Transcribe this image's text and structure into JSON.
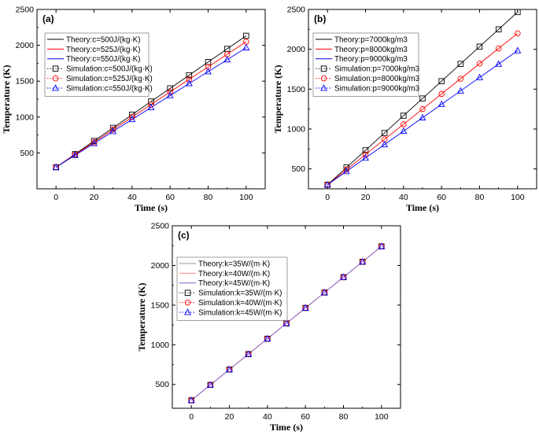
{
  "chart_data": [
    {
      "id": "a",
      "type": "line",
      "panel_label": "(a)",
      "xlabel": "Time (s)",
      "ylabel": "Temperature (K)",
      "xlim": [
        -10,
        110
      ],
      "ylim": [
        0,
        2500
      ],
      "xticks": [
        0,
        20,
        40,
        60,
        80,
        100
      ],
      "yticks": [
        500,
        1000,
        1500,
        2000,
        2500
      ],
      "legend_position": "upper-left",
      "x": [
        0,
        10,
        20,
        30,
        40,
        50,
        60,
        70,
        80,
        90,
        100
      ],
      "series": [
        {
          "name": "Theory:c=500J/(kg·K)",
          "kind": "line",
          "color": "#000000",
          "values": [
            300,
            483,
            667,
            850,
            1033,
            1217,
            1400,
            1583,
            1767,
            1950,
            2133
          ]
        },
        {
          "name": "Theory:c=525J/(kg·K)",
          "kind": "line",
          "color": "#ff0000",
          "values": [
            300,
            475,
            650,
            825,
            1000,
            1175,
            1350,
            1525,
            1700,
            1875,
            2050
          ]
        },
        {
          "name": "Theory:c=550J/(kg·K)",
          "kind": "line",
          "color": "#0000ff",
          "values": [
            300,
            467,
            633,
            800,
            967,
            1133,
            1300,
            1467,
            1633,
            1800,
            1967
          ]
        },
        {
          "name": "Simulation:c=500J/(kg·K)",
          "kind": "marker",
          "marker": "square",
          "color": "#000000",
          "values": [
            300,
            483,
            667,
            850,
            1033,
            1217,
            1400,
            1583,
            1767,
            1950,
            2133
          ]
        },
        {
          "name": "Simulation:c=525J/(kg·K)",
          "kind": "marker",
          "marker": "circle",
          "color": "#ff0000",
          "values": [
            300,
            475,
            650,
            825,
            1000,
            1175,
            1350,
            1525,
            1700,
            1875,
            2050
          ]
        },
        {
          "name": "Simulation:c=550J/(kg·K)",
          "kind": "marker",
          "marker": "triangle",
          "color": "#0000ff",
          "values": [
            300,
            467,
            633,
            800,
            967,
            1133,
            1300,
            1467,
            1633,
            1800,
            1967
          ]
        }
      ]
    },
    {
      "id": "b",
      "type": "line",
      "panel_label": "(b)",
      "xlabel": "Time (s)",
      "ylabel": "Temperature (K)",
      "xlim": [
        -10,
        110
      ],
      "ylim": [
        250,
        2500
      ],
      "xticks": [
        0,
        20,
        40,
        60,
        80,
        100
      ],
      "yticks": [
        500,
        1000,
        1500,
        2000,
        2500
      ],
      "legend_position": "upper-left",
      "x": [
        0,
        10,
        20,
        30,
        40,
        50,
        60,
        70,
        80,
        90,
        100
      ],
      "series": [
        {
          "name": "Theory:p=7000kg/m3",
          "kind": "line",
          "color": "#000000",
          "values": [
            300,
            517,
            733,
            950,
            1167,
            1383,
            1600,
            1817,
            2033,
            2250,
            2467
          ]
        },
        {
          "name": "Theory:p=8000kg/m3",
          "kind": "line",
          "color": "#ff0000",
          "values": [
            300,
            490,
            680,
            870,
            1060,
            1250,
            1440,
            1630,
            1820,
            2010,
            2200
          ]
        },
        {
          "name": "Theory:p=9000kg/m3",
          "kind": "line",
          "color": "#0000ff",
          "values": [
            300,
            468,
            637,
            805,
            973,
            1142,
            1310,
            1478,
            1646,
            1815,
            1983
          ]
        },
        {
          "name": "Simulation:p=7000kg/m3",
          "kind": "marker",
          "marker": "square",
          "color": "#000000",
          "values": [
            300,
            517,
            733,
            950,
            1167,
            1383,
            1600,
            1817,
            2033,
            2250,
            2467
          ]
        },
        {
          "name": "Simulation:p=8000kg/m3",
          "kind": "marker",
          "marker": "circle",
          "color": "#ff0000",
          "values": [
            300,
            490,
            680,
            870,
            1060,
            1250,
            1440,
            1630,
            1820,
            2010,
            2200
          ]
        },
        {
          "name": "Simulation:p=9000kg/m3",
          "kind": "marker",
          "marker": "triangle",
          "color": "#0000ff",
          "values": [
            300,
            468,
            637,
            805,
            973,
            1142,
            1310,
            1478,
            1646,
            1815,
            1983
          ]
        }
      ]
    },
    {
      "id": "c",
      "type": "line",
      "panel_label": "(c)",
      "xlabel": "Time (s)",
      "ylabel": "Temperature (K)",
      "xlim": [
        -10,
        110
      ],
      "ylim": [
        200,
        2500
      ],
      "xticks": [
        0,
        20,
        40,
        60,
        80,
        100
      ],
      "yticks": [
        500,
        1000,
        1500,
        2000,
        2500
      ],
      "legend_position": "upper-left",
      "x": [
        0,
        10,
        20,
        30,
        40,
        50,
        60,
        70,
        80,
        90,
        100
      ],
      "series": [
        {
          "name": "Theory:k=35W/(m·K)",
          "kind": "line",
          "color": "#9a9a9a",
          "values": [
            300,
            494,
            688,
            882,
            1076,
            1270,
            1464,
            1658,
            1852,
            2046,
            2240
          ]
        },
        {
          "name": "Theory:k=40W/(m·K)",
          "kind": "line",
          "color": "#ff8a8a",
          "values": [
            300,
            494,
            688,
            882,
            1076,
            1270,
            1464,
            1658,
            1852,
            2046,
            2240
          ]
        },
        {
          "name": "Theory:k=45W/(m·K)",
          "kind": "line",
          "color": "#8a5cc8",
          "values": [
            300,
            494,
            688,
            882,
            1076,
            1270,
            1464,
            1658,
            1852,
            2046,
            2240
          ]
        },
        {
          "name": "Simulation:k=35W/(m·K)",
          "kind": "marker",
          "marker": "square",
          "color": "#000000",
          "values": [
            300,
            494,
            688,
            882,
            1076,
            1270,
            1464,
            1658,
            1852,
            2046,
            2240
          ]
        },
        {
          "name": "Simulation:k=40W/(m·K)",
          "kind": "marker",
          "marker": "circle",
          "color": "#ff0000",
          "values": [
            300,
            494,
            688,
            882,
            1076,
            1270,
            1464,
            1658,
            1852,
            2046,
            2240
          ]
        },
        {
          "name": "Simulation:k=45W/(m·K)",
          "kind": "marker",
          "marker": "triangle",
          "color": "#0000ff",
          "values": [
            300,
            494,
            688,
            882,
            1076,
            1270,
            1464,
            1658,
            1852,
            2046,
            2240
          ]
        }
      ]
    }
  ]
}
